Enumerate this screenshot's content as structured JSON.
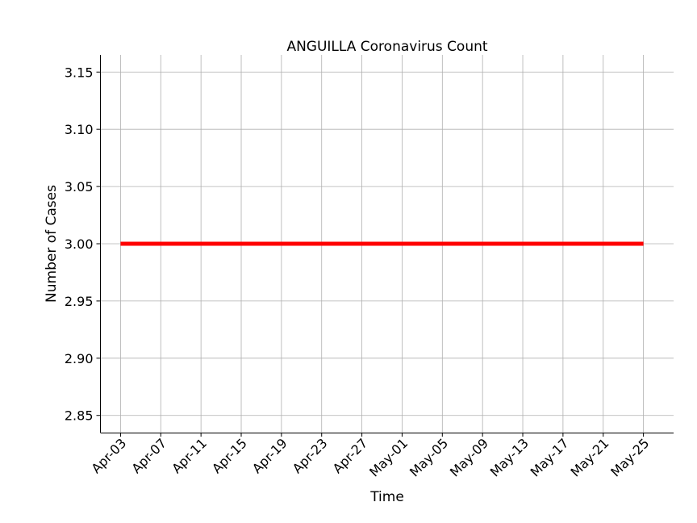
{
  "chart_data": {
    "type": "line",
    "title": "ANGUILLA Coronavirus Count",
    "xlabel": "Time",
    "ylabel": "Number of Cases",
    "x_ticks": [
      "Apr-03",
      "Apr-07",
      "Apr-11",
      "Apr-15",
      "Apr-19",
      "Apr-23",
      "Apr-27",
      "May-01",
      "May-05",
      "May-09",
      "May-13",
      "May-17",
      "May-21",
      "May-25"
    ],
    "x_tick_dates": [
      "2020-04-03",
      "2020-04-07",
      "2020-04-11",
      "2020-04-15",
      "2020-04-19",
      "2020-04-23",
      "2020-04-27",
      "2020-05-01",
      "2020-05-05",
      "2020-05-09",
      "2020-05-13",
      "2020-05-17",
      "2020-05-21",
      "2020-05-25"
    ],
    "xlim": [
      "2020-04-01",
      "2020-05-28"
    ],
    "y_ticks": [
      "2.85",
      "2.90",
      "2.95",
      "3.00",
      "3.05",
      "3.10",
      "3.15"
    ],
    "ylim": [
      2.835,
      3.165
    ],
    "grid": true,
    "series": [
      {
        "color": "#ff0000",
        "x": [
          "2020-04-03",
          "2020-05-25"
        ],
        "y": [
          3,
          3
        ]
      }
    ]
  }
}
